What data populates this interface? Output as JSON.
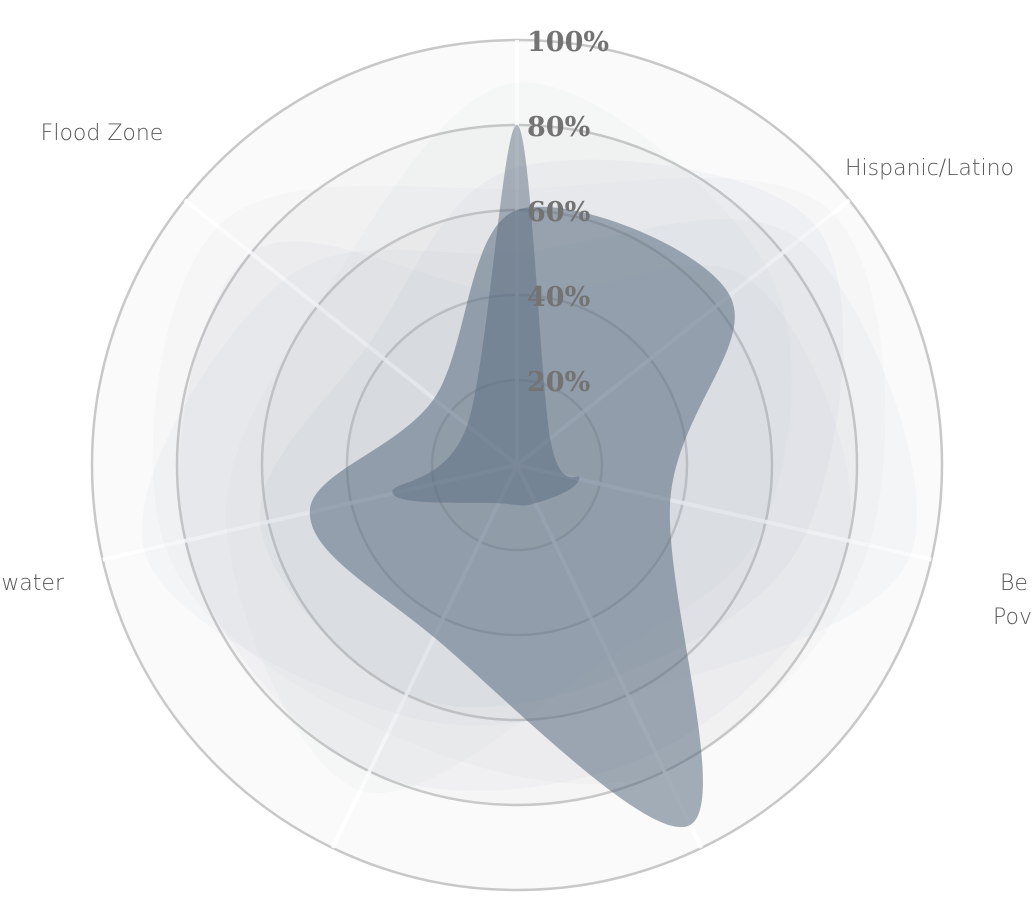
{
  "chart_data": {
    "type": "radar",
    "axes": [
      "",
      "Hispanic/Latino",
      "Be\nPov",
      "",
      "",
      "water",
      "Flood Zone"
    ],
    "ticks": [
      "20%",
      "40%",
      "60%",
      "80%",
      "100%"
    ],
    "rmax": 100,
    "series": [
      {
        "values": [
          60,
          64,
          37,
          94,
          45,
          50,
          25
        ],
        "opacity": 0.55,
        "color": "#5a6c80"
      },
      {
        "values": [
          80,
          10,
          15,
          10,
          10,
          30,
          15
        ],
        "opacity": 0.45,
        "color": "#4f6276"
      },
      {
        "values": [
          70,
          90,
          70,
          55,
          60,
          62,
          45
        ],
        "opacity": 0.06,
        "color": "#8f96b4"
      },
      {
        "values": [
          50,
          85,
          95,
          60,
          65,
          90,
          70
        ],
        "opacity": 0.06,
        "color": "#9aa6b4"
      },
      {
        "values": [
          40,
          70,
          80,
          75,
          80,
          80,
          80
        ],
        "opacity": 0.05,
        "color": "#a49ac0"
      },
      {
        "values": [
          90,
          75,
          60,
          50,
          85,
          70,
          60
        ],
        "opacity": 0.05,
        "color": "#9ab0aa"
      },
      {
        "values": [
          65,
          95,
          85,
          80,
          70,
          85,
          90
        ],
        "opacity": 0.05,
        "color": "#b0aac0"
      }
    ],
    "colors": {
      "grid": "#c8c8c8",
      "ring_fill": "#cdcdcd",
      "axis": "#ffffff"
    }
  }
}
